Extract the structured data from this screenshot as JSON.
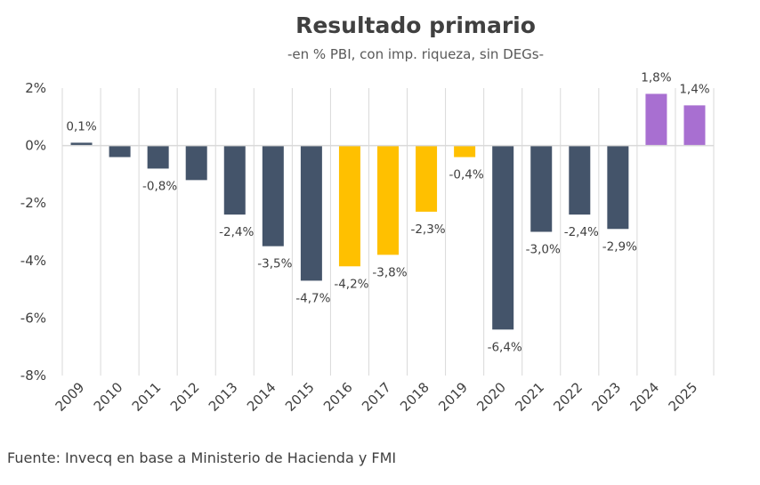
{
  "chart_data": {
    "type": "bar",
    "title": "Resultado primario",
    "subtitle": "-en % PBI, con imp. riqueza, sin DEGs-",
    "categories": [
      "2009",
      "2010",
      "2011",
      "2012",
      "2013",
      "2014",
      "2015",
      "2016",
      "2017",
      "2018",
      "2019",
      "2020",
      "2021",
      "2022",
      "2023",
      "2024",
      "2025"
    ],
    "values": [
      0.1,
      -0.4,
      -0.8,
      -1.2,
      -2.4,
      -3.5,
      -4.7,
      -4.2,
      -3.8,
      -2.3,
      -0.4,
      -6.4,
      -3.0,
      -2.4,
      -2.9,
      1.8,
      1.4
    ],
    "data_labels": [
      "0,1%",
      "",
      "-0,8%",
      "",
      "-2,4%",
      "-3,5%",
      "-4,7%",
      "-4,2%",
      "-3,8%",
      "-2,3%",
      "-0,4%",
      "-6,4%",
      "-3,0%",
      "-2,4%",
      "-2,9%",
      "1,8%",
      "1,4%"
    ],
    "bar_colors": [
      "#44546a",
      "#44546a",
      "#44546a",
      "#44546a",
      "#44546a",
      "#44546a",
      "#44546a",
      "#ffc000",
      "#ffc000",
      "#ffc000",
      "#ffc000",
      "#44546a",
      "#44546a",
      "#44546a",
      "#44546a",
      "#a86fd1",
      "#a86fd1"
    ],
    "ylim": [
      -8,
      2
    ],
    "yticks": [
      2,
      0,
      -2,
      -4,
      -6,
      -8
    ],
    "ytick_labels": [
      "2%",
      "0%",
      "-2%",
      "-4%",
      "-6%",
      "-8%"
    ],
    "xlabel": "",
    "ylabel": "",
    "grid": "vertical",
    "legend": "none"
  },
  "source": "Fuente: Invecq en base a Ministerio de Hacienda y FMI"
}
